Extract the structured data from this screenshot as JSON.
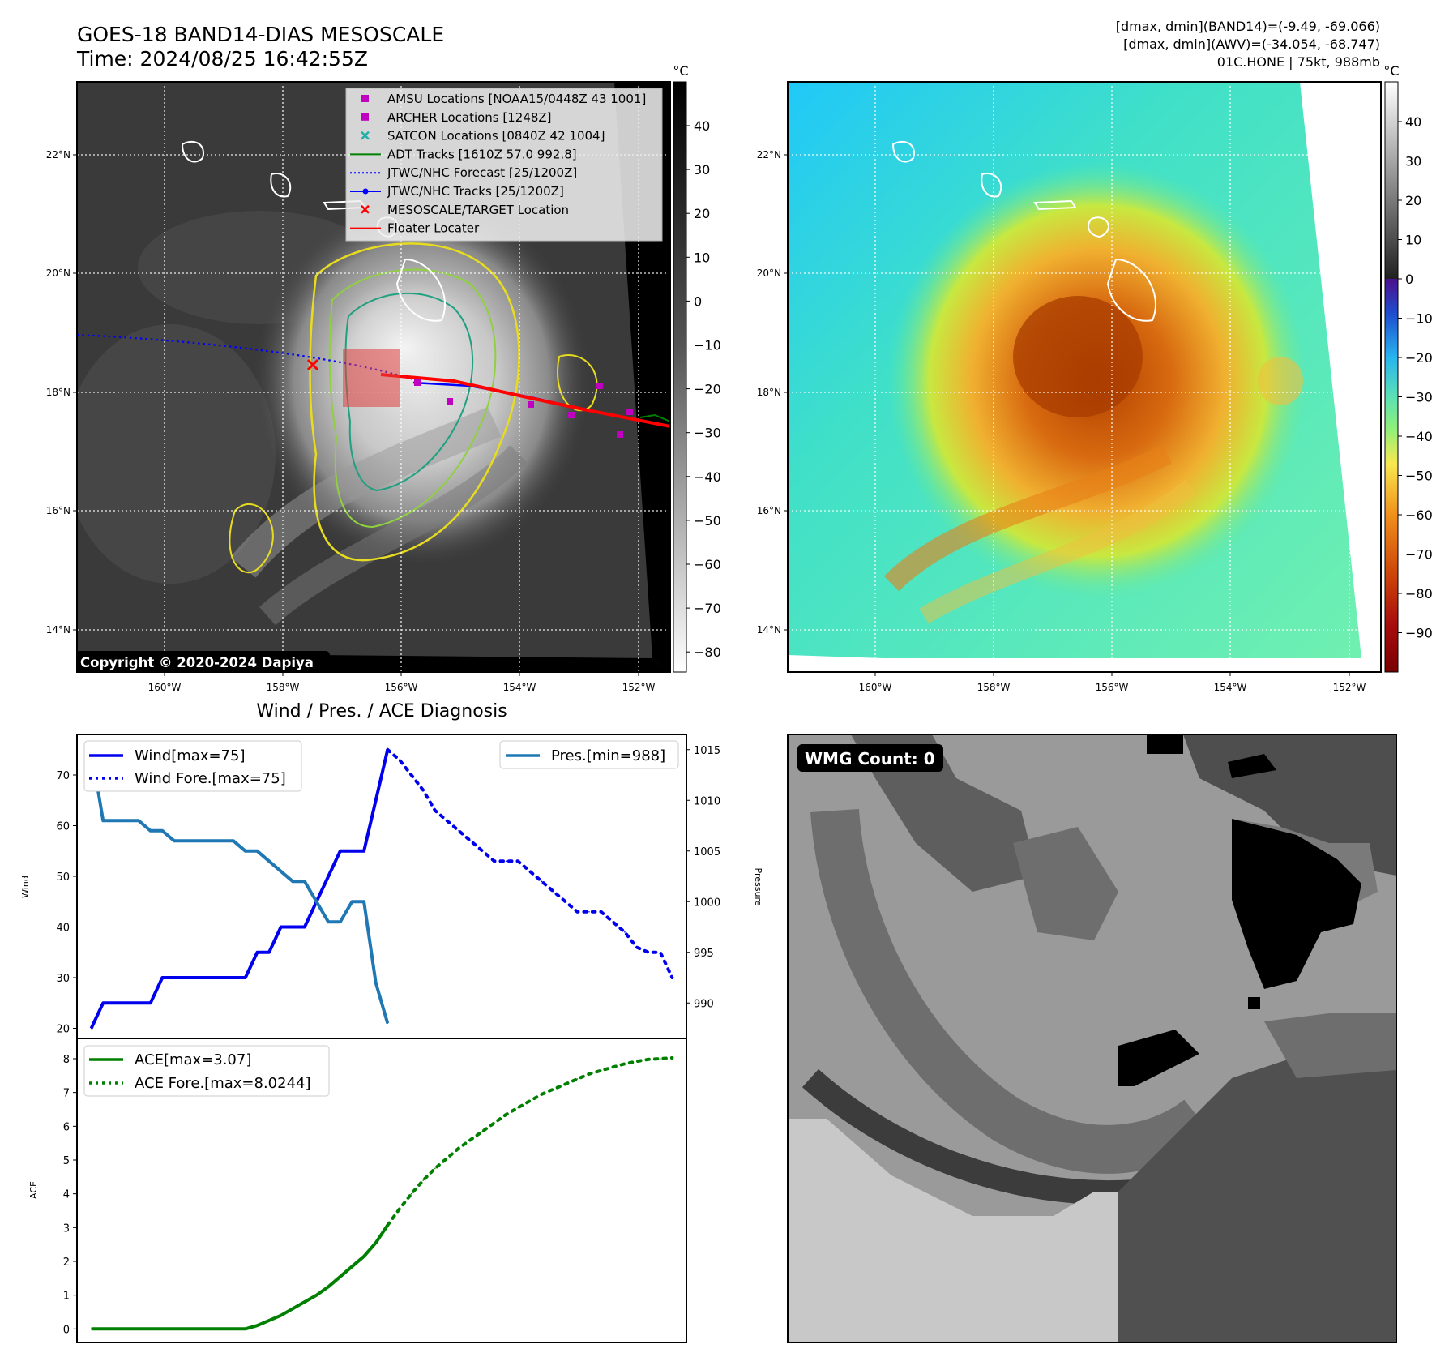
{
  "header": {
    "title": "GOES-18 BAND14-DIAS MESOSCALE",
    "time": "Time: 2024/08/25 16:42:55Z",
    "dmax_band14": "[dmax, dmin](BAND14)=(-9.49, -69.066)",
    "dmax_awv": "[dmax, dmin](AWV)=(-34.054, -68.747)",
    "storm": "01C.HONE | 75kt, 988mb"
  },
  "map": {
    "lat_labels": [
      "22°N",
      "20°N",
      "18°N",
      "16°N",
      "14°N"
    ],
    "lon_labels": [
      "160°W",
      "158°W",
      "156°W",
      "154°W",
      "152°W"
    ],
    "copyright": "Copyright © 2020-2024 Dapiya",
    "legend": [
      {
        "label": "AMSU Locations [NOAA15/0448Z 43 1001]",
        "color": "#c000c0",
        "marker": "square"
      },
      {
        "label": "ARCHER Locations [1248Z]",
        "color": "#c000c0",
        "marker": "square"
      },
      {
        "label": "SATCON Locations [0840Z 42 1004]",
        "color": "#20b0a8",
        "marker": "x"
      },
      {
        "label": "ADT Tracks [1610Z 57.0 992.8]",
        "color": "#008000",
        "marker": "line"
      },
      {
        "label": "JTWC/NHC Forecast [25/1200Z]",
        "color": "#0000ff",
        "marker": "dotted"
      },
      {
        "label": "JTWC/NHC Tracks [25/1200Z]",
        "color": "#0000ff",
        "marker": "line-dot"
      },
      {
        "label": "MESOSCALE/TARGET Location",
        "color": "#ff0000",
        "marker": "x"
      },
      {
        "label": "Floater Locater",
        "color": "#ff0000",
        "marker": "line"
      }
    ],
    "cbar_unit": "°C",
    "cbar_left_ticks": [
      "40",
      "30",
      "20",
      "10",
      "0",
      "−10",
      "−20",
      "−30",
      "−40",
      "−50",
      "−60",
      "−70",
      "−80"
    ],
    "cbar_right_ticks": [
      "40",
      "30",
      "20",
      "10",
      "0",
      "−10",
      "−20",
      "−30",
      "−40",
      "−50",
      "−60",
      "−70",
      "−80",
      "−90"
    ]
  },
  "diagnosis": {
    "title": "Wind / Pres. / ACE Diagnosis",
    "wind_ylabel": "Wind",
    "pres_ylabel": "Pressure",
    "ace_ylabel": "ACE",
    "wind_ticks": [
      "70",
      "60",
      "50",
      "40",
      "30",
      "20"
    ],
    "pres_ticks": [
      "1015",
      "1010",
      "1005",
      "1000",
      "995",
      "990"
    ],
    "ace_ticks": [
      "8",
      "7",
      "6",
      "5",
      "4",
      "3",
      "2",
      "1",
      "0"
    ],
    "legend_wind": "Wind[max=75]",
    "legend_wind_fore": "Wind Fore.[max=75]",
    "legend_pres": "Pres.[min=988]",
    "legend_ace": "ACE[max=3.07]",
    "legend_ace_fore": "ACE Fore.[max=8.0244]"
  },
  "wmg": {
    "label": "WMG Count: 0"
  },
  "colors": {
    "wind": "#0000ee",
    "pres": "#1f77b4",
    "ace": "#008000"
  },
  "chart_data": [
    {
      "type": "line",
      "name": "wind",
      "series": [
        {
          "name": "Wind[max=75]",
          "style": "solid",
          "x": [
            0,
            1,
            2,
            3,
            4,
            5,
            6,
            7,
            8,
            9,
            10,
            11,
            12,
            13,
            14,
            15,
            16,
            17,
            18,
            19,
            20,
            21,
            22,
            23,
            24,
            25
          ],
          "values": [
            20,
            25,
            25,
            25,
            25,
            25,
            30,
            30,
            30,
            30,
            30,
            30,
            30,
            30,
            35,
            35,
            40,
            40,
            40,
            45,
            50,
            55,
            55,
            55,
            65,
            75
          ]
        },
        {
          "name": "Wind Fore.[max=75]",
          "style": "dotted",
          "x": [
            25,
            26,
            27,
            28,
            29,
            30,
            31,
            32,
            33,
            34,
            35,
            36,
            37,
            38,
            39,
            40,
            41,
            42,
            43,
            44,
            45,
            46,
            47,
            48,
            49
          ],
          "values": [
            75,
            73,
            70,
            67,
            63,
            61,
            59,
            57,
            55,
            53,
            53,
            53,
            51,
            49,
            47,
            45,
            43,
            43,
            43,
            41,
            39,
            36,
            35,
            35,
            30
          ]
        }
      ],
      "ylim": [
        18,
        78
      ]
    },
    {
      "type": "line",
      "name": "pressure",
      "series": [
        {
          "name": "Pres.[min=988]",
          "style": "solid",
          "x": [
            0,
            1,
            2,
            3,
            4,
            5,
            6,
            7,
            8,
            9,
            10,
            11,
            12,
            13,
            14,
            15,
            16,
            17,
            18,
            19,
            20,
            21,
            22,
            23,
            24,
            25
          ],
          "values": [
            1015,
            1008,
            1008,
            1008,
            1008,
            1007,
            1007,
            1006,
            1006,
            1006,
            1006,
            1006,
            1006,
            1005,
            1005,
            1004,
            1003,
            1002,
            1002,
            1000,
            998,
            998,
            1000,
            1000,
            992,
            988
          ]
        }
      ],
      "ylim": [
        986.5,
        1016.5
      ]
    },
    {
      "type": "line",
      "name": "ace",
      "series": [
        {
          "name": "ACE[max=3.07]",
          "style": "solid",
          "x": [
            0,
            2,
            4,
            6,
            8,
            10,
            12,
            13,
            14,
            15,
            16,
            17,
            18,
            19,
            20,
            21,
            22,
            23,
            24,
            25
          ],
          "values": [
            0,
            0,
            0,
            0,
            0,
            0,
            0,
            0,
            0.1,
            0.25,
            0.4,
            0.6,
            0.8,
            1.0,
            1.25,
            1.55,
            1.85,
            2.15,
            2.55,
            3.07
          ]
        },
        {
          "name": "ACE Fore.[max=8.0244]",
          "style": "dotted",
          "x": [
            25,
            26,
            27,
            28,
            29,
            30,
            31,
            32,
            33,
            34,
            35,
            36,
            37,
            38,
            39,
            40,
            41,
            42,
            43,
            44,
            45,
            46,
            47,
            48,
            49
          ],
          "values": [
            3.07,
            3.55,
            4.0,
            4.4,
            4.75,
            5.05,
            5.35,
            5.6,
            5.85,
            6.1,
            6.35,
            6.55,
            6.75,
            6.95,
            7.1,
            7.25,
            7.4,
            7.55,
            7.65,
            7.75,
            7.85,
            7.92,
            7.98,
            8.0,
            8.0244
          ]
        }
      ],
      "ylim": [
        -0.4,
        8.6
      ]
    }
  ]
}
